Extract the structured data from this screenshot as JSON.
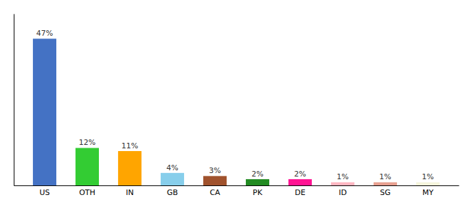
{
  "chart_data": {
    "type": "bar",
    "categories": [
      "US",
      "OTH",
      "IN",
      "GB",
      "CA",
      "PK",
      "DE",
      "ID",
      "SG",
      "MY"
    ],
    "values": [
      47,
      12,
      11,
      4,
      3,
      2,
      2,
      1,
      1,
      1
    ],
    "value_labels": [
      "47%",
      "12%",
      "11%",
      "4%",
      "3%",
      "2%",
      "2%",
      "1%",
      "1%",
      "1%"
    ],
    "colors": [
      "#4472C4",
      "#33CC33",
      "#FFA500",
      "#87CEEB",
      "#A0522D",
      "#228B22",
      "#FF1493",
      "#FFB6C1",
      "#E8A090",
      "#F5F5DC"
    ],
    "ylim": [
      0,
      55
    ],
    "data_labels": true,
    "tick_labels": "x",
    "grid": false
  }
}
